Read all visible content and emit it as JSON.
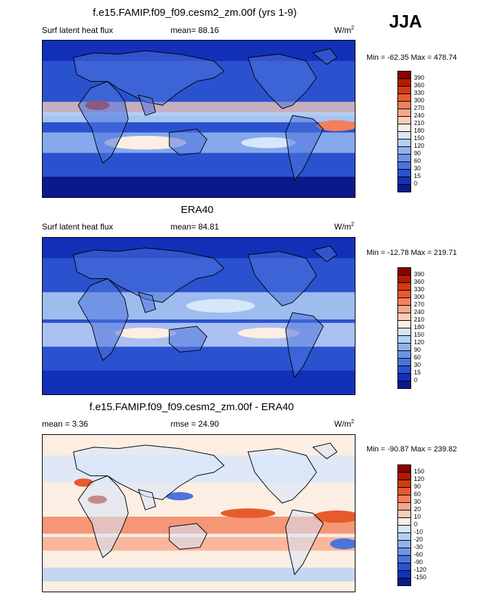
{
  "season": "JJA",
  "panels": [
    {
      "id": "model",
      "title": "f.e15.FAMIP.f09_f09.cesm2_zm.00f (yrs 1-9)",
      "left_label": "Surf latent heat flux",
      "stat": "mean=  88.16",
      "units": "W/m",
      "units_sup": "2",
      "minmax": "Min = -62.35 Max = 478.74",
      "field": "latent"
    },
    {
      "id": "obs",
      "title": "ERA40",
      "left_label": "Surf latent heat flux",
      "stat": "mean=  84.81",
      "units": "W/m",
      "units_sup": "2",
      "minmax": "Min = -12.78 Max = 219.71",
      "field": "latent"
    },
    {
      "id": "diff",
      "title": "f.e15.FAMIP.f09_f09.cesm2_zm.00f - ERA40",
      "left_label": "mean =   3.36",
      "stat": "rmse =  24.90",
      "units": "W/m",
      "units_sup": "2",
      "minmax": "Min = -90.87 Max = 239.82",
      "field": "diff"
    }
  ],
  "colorbars": {
    "latent": {
      "levels": [
        "390",
        "360",
        "330",
        "300",
        "270",
        "240",
        "210",
        "180",
        "150",
        "120",
        "90",
        "60",
        "30",
        "15",
        "0"
      ],
      "colors": [
        "#8b0000",
        "#b31b00",
        "#d43a0f",
        "#e85a2c",
        "#f2805a",
        "#f7a789",
        "#fbcdb8",
        "#fdeee3",
        "#d6e6fb",
        "#b4cff5",
        "#8fb2ee",
        "#6d94e6",
        "#4a73dc",
        "#2a52cf",
        "#1230b8",
        "#0a1a8a"
      ]
    },
    "diff": {
      "levels": [
        "150",
        "120",
        "90",
        "60",
        "30",
        "20",
        "10",
        "0",
        "-10",
        "-20",
        "-30",
        "-60",
        "-90",
        "-120",
        "-150"
      ],
      "colors": [
        "#8b0000",
        "#b31b00",
        "#d43a0f",
        "#e85a2c",
        "#f2805a",
        "#f7a789",
        "#fbcdb8",
        "#fdeee3",
        "#d6e6fb",
        "#b4cff5",
        "#8fb2ee",
        "#6d94e6",
        "#4a73dc",
        "#2a52cf",
        "#1230b8",
        "#0a1a8a"
      ]
    }
  },
  "chart_data": [
    {
      "type": "heatmap",
      "title": "f.e15.FAMIP.f09_f09.cesm2_zm.00f (yrs 1-9)",
      "variable": "Surf latent heat flux",
      "units": "W/m2",
      "mean": 88.16,
      "min": -62.35,
      "max": 478.74,
      "contour_levels": [
        0,
        15,
        30,
        60,
        90,
        120,
        150,
        180,
        210,
        240,
        270,
        300,
        330,
        360,
        390
      ]
    },
    {
      "type": "heatmap",
      "title": "ERA40",
      "variable": "Surf latent heat flux",
      "units": "W/m2",
      "mean": 84.81,
      "min": -12.78,
      "max": 219.71,
      "contour_levels": [
        0,
        15,
        30,
        60,
        90,
        120,
        150,
        180,
        210,
        240,
        270,
        300,
        330,
        360,
        390
      ]
    },
    {
      "type": "heatmap",
      "title": "f.e15.FAMIP.f09_f09.cesm2_zm.00f - ERA40",
      "units": "W/m2",
      "mean": 3.36,
      "rmse": 24.9,
      "min": -90.87,
      "max": 239.82,
      "contour_levels": [
        -150,
        -120,
        -90,
        -60,
        -30,
        -20,
        -10,
        0,
        10,
        20,
        30,
        60,
        90,
        120,
        150
      ]
    }
  ]
}
